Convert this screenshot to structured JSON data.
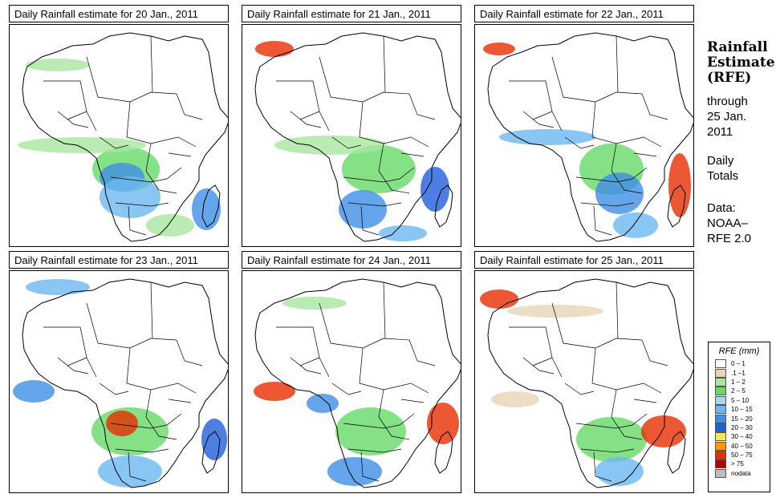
{
  "panels": [
    {
      "title": "Daily Rainfall estimate for  20 Jan., 2011"
    },
    {
      "title": "Daily Rainfall estimate for  21 Jan., 2011"
    },
    {
      "title": "Daily Rainfall estimate for  22 Jan., 2011"
    },
    {
      "title": "Daily Rainfall estimate for  23 Jan., 2011"
    },
    {
      "title": "Daily Rainfall estimate for  24 Jan., 2011"
    },
    {
      "title": "Daily Rainfall estimate for  25 Jan., 2011"
    }
  ],
  "side": {
    "title_lines": [
      "Rainfall",
      "Estimate",
      "(RFE)"
    ],
    "through": [
      "through",
      "25 Jan.",
      "2011"
    ],
    "totals": [
      "Daily",
      "Totals"
    ],
    "data": [
      "Data:",
      "NOAA–",
      "RFE 2.0"
    ]
  },
  "legend": {
    "title": "RFE (mm)",
    "items": [
      {
        "label": "0 – 1",
        "color": "#ffffff"
      },
      {
        "label": ".1 –1",
        "color": "#e6d4b8"
      },
      {
        "label": "1 – 2",
        "color": "#a8e6a0"
      },
      {
        "label": "2 – 5",
        "color": "#66d966"
      },
      {
        "label": "5 – 10",
        "color": "#a6d9ef"
      },
      {
        "label": "10 – 15",
        "color": "#6cb8f0"
      },
      {
        "label": "15 – 20",
        "color": "#3f8ee6"
      },
      {
        "label": "20 – 30",
        "color": "#1f5fd9"
      },
      {
        "label": "30 – 40",
        "color": "#ffe066"
      },
      {
        "label": "40 – 50",
        "color": "#ff9a00"
      },
      {
        "label": "50 – 75",
        "color": "#e62e00"
      },
      {
        "label": "> 75",
        "color": "#b30000"
      },
      {
        "label": "nodata",
        "color": "#bdbdbd"
      }
    ]
  }
}
